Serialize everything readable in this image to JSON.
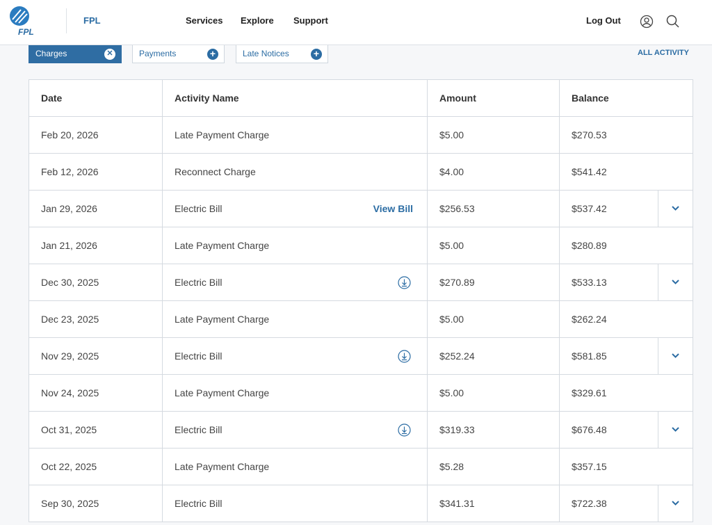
{
  "header": {
    "logo_text": "FPL",
    "brand": "FPL",
    "nav": [
      "Services",
      "Explore",
      "Support"
    ],
    "logout": "Log Out"
  },
  "filters": {
    "chips": [
      {
        "label": "Charges",
        "active": true
      },
      {
        "label": "Payments",
        "active": false
      },
      {
        "label": "Late Notices",
        "active": false
      }
    ],
    "all_activity": "ALL ACTIVITY"
  },
  "table": {
    "columns": [
      "Date",
      "Activity Name",
      "Amount",
      "Balance"
    ],
    "rows": [
      {
        "date": "Feb 20, 2026",
        "name": "Late Payment Charge",
        "amount": "$5.00",
        "balance": "$270.53"
      },
      {
        "date": "Feb 12, 2026",
        "name": "Reconnect Charge",
        "amount": "$4.00",
        "balance": "$541.42"
      },
      {
        "date": "Jan 29, 2026",
        "name": "Electric Bill",
        "action": "View Bill",
        "amount": "$256.53",
        "balance": "$537.42",
        "expandable": true
      },
      {
        "date": "Jan 21, 2026",
        "name": "Late Payment Charge",
        "amount": "$5.00",
        "balance": "$280.89"
      },
      {
        "date": "Dec 30, 2025",
        "name": "Electric Bill",
        "download": true,
        "amount": "$270.89",
        "balance": "$533.13",
        "expandable": true
      },
      {
        "date": "Dec 23, 2025",
        "name": "Late Payment Charge",
        "amount": "$5.00",
        "balance": "$262.24"
      },
      {
        "date": "Nov 29, 2025",
        "name": "Electric Bill",
        "download": true,
        "amount": "$252.24",
        "balance": "$581.85",
        "expandable": true
      },
      {
        "date": "Nov 24, 2025",
        "name": "Late Payment Charge",
        "amount": "$5.00",
        "balance": "$329.61"
      },
      {
        "date": "Oct 31, 2025",
        "name": "Electric Bill",
        "download": true,
        "amount": "$319.33",
        "balance": "$676.48",
        "expandable": true
      },
      {
        "date": "Oct 22, 2025",
        "name": "Late Payment Charge",
        "amount": "$5.28",
        "balance": "$357.15"
      },
      {
        "date": "Sep 30, 2025",
        "name": "Electric Bill",
        "amount": "$341.31",
        "balance": "$722.38",
        "expandable": true
      }
    ]
  }
}
